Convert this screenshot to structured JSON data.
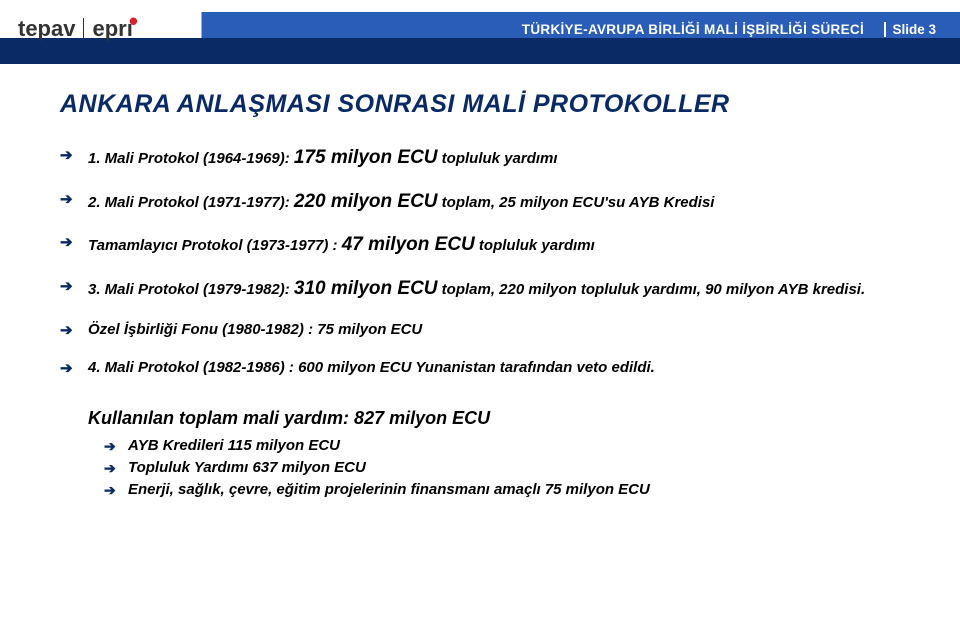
{
  "header": {
    "logo_left": "tepav",
    "logo_right": "eprı",
    "title": "TÜRKİYE-AVRUPA BİRLİĞİ MALİ  İŞBİRLİĞİ  SÜRECİ",
    "slide_label": "Slide 3"
  },
  "main_title": "ANKARA ANLAŞMASI SONRASI MALİ PROTOKOLLER",
  "bullets": [
    {
      "prefix": "1. Mali Protokol (1964-1969): ",
      "em": "175 milyon ECU",
      "suffix": " topluluk yardımı"
    },
    {
      "prefix": "2. Mali Protokol (1971-1977): ",
      "em": "220 milyon ECU",
      "suffix": " toplam, 25 milyon ECU'su AYB Kredisi"
    },
    {
      "prefix": "Tamamlayıcı Protokol (1973-1977) : ",
      "em": "47 milyon ECU",
      "suffix": " topluluk yardımı"
    },
    {
      "prefix": "3. Mali Protokol (1979-1982): ",
      "em": "310 milyon ECU",
      "suffix": " toplam, 220 milyon topluluk yardımı, 90 milyon AYB kredisi."
    },
    {
      "prefix": "Özel İşbirliği Fonu (1980-1982) : 75 milyon ECU",
      "em": "",
      "suffix": ""
    },
    {
      "prefix": "4. Mali Protokol (1982-1986) : 600 milyon ECU Yunanistan tarafından veto edildi.",
      "em": "",
      "suffix": ""
    }
  ],
  "summary": {
    "title": "Kullanılan toplam mali yardım: 827 milyon ECU",
    "items": [
      "AYB Kredileri 115 milyon ECU",
      "Topluluk Yardımı 637 milyon ECU",
      "Enerji, sağlık, çevre, eğitim projelerinin finansmanı amaçlı 75 milyon ECU"
    ]
  },
  "colors": {
    "dark_blue": "#0a2a66",
    "mid_blue": "#2a5db8",
    "text_black": "#000000",
    "bg_white": "#ffffff",
    "logo_red": "#d8232a"
  }
}
